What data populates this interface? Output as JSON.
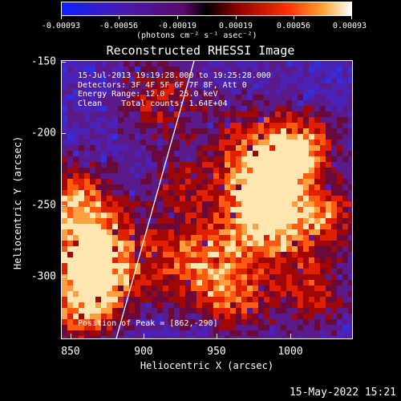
{
  "colorbar": {
    "ticks": [
      "-0.00093",
      "-0.00056",
      "-0.00019",
      "0.00019",
      "0.00056",
      "0.00093"
    ],
    "units_label": "(photons cm⁻² s⁻¹ asec⁻²)"
  },
  "title": "Reconstructed RHESSI Image",
  "annotations": {
    "time_range": "15-Jul-2013 19:19:28.000 to 19:25:28.000",
    "detectors": "Detectors: 3F 4F 5F 6F 7F 8F, Att 0",
    "energy": "Energy Range: 12.0 - 25.0 keV",
    "method": "Clean    Total counts: 1.64E+04",
    "peak": "Position of Peak = [862,-290]"
  },
  "axes": {
    "xlabel": "Heliocentric X (arcsec)",
    "ylabel": "Heliocentric Y (arcsec)",
    "xticks": [
      "850",
      "900",
      "950",
      "1000"
    ],
    "yticks": [
      "-150",
      "-200",
      "-250",
      "-300"
    ],
    "xlim": [
      843,
      1034
    ],
    "ylim": [
      -343,
      -148
    ]
  },
  "timestamp": "15-May-2022 15:21"
}
